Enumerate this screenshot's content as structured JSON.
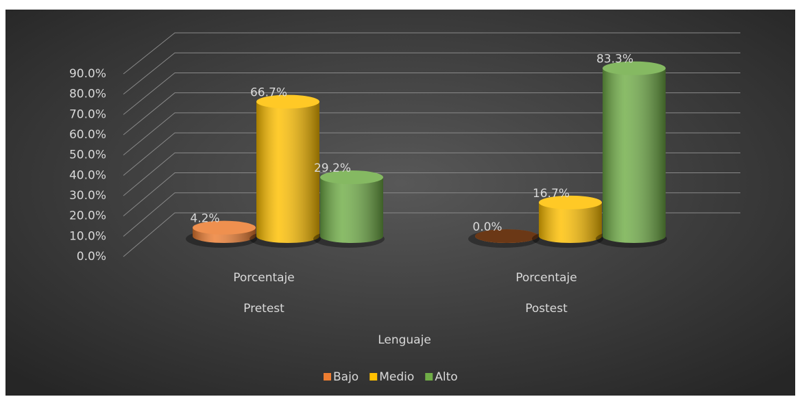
{
  "chart_data": {
    "type": "bar3d",
    "categories": [
      [
        "Porcentaje",
        "Pretest"
      ],
      [
        "Porcentaje",
        "Postest"
      ]
    ],
    "x_label": "Lenguaje",
    "series": [
      {
        "name": "Bajo",
        "color": "#ed7d31",
        "values": [
          4.2,
          0.0
        ],
        "value_labels": [
          "4.2%",
          "0.0%"
        ]
      },
      {
        "name": "Medio",
        "color": "#ffc000",
        "values": [
          66.7,
          16.7
        ],
        "value_labels": [
          "66.7%",
          "16.7%"
        ]
      },
      {
        "name": "Alto",
        "color": "#70ad47",
        "values": [
          29.2,
          83.3
        ],
        "value_labels": [
          "29.2%",
          "83.3%"
        ]
      }
    ],
    "ylim": [
      0,
      90
    ],
    "yticks": [
      {
        "value": 0,
        "label": "0.0%"
      },
      {
        "value": 10,
        "label": "10.0%"
      },
      {
        "value": 20,
        "label": "20.0%"
      },
      {
        "value": 30,
        "label": "30.0%"
      },
      {
        "value": 40,
        "label": "40.0%"
      },
      {
        "value": 50,
        "label": "50.0%"
      },
      {
        "value": 60,
        "label": "60.0%"
      },
      {
        "value": 70,
        "label": "70.0%"
      },
      {
        "value": 80,
        "label": "80.0%"
      },
      {
        "value": 90,
        "label": "90.0%"
      }
    ],
    "grid": true,
    "legend": "bottom"
  }
}
